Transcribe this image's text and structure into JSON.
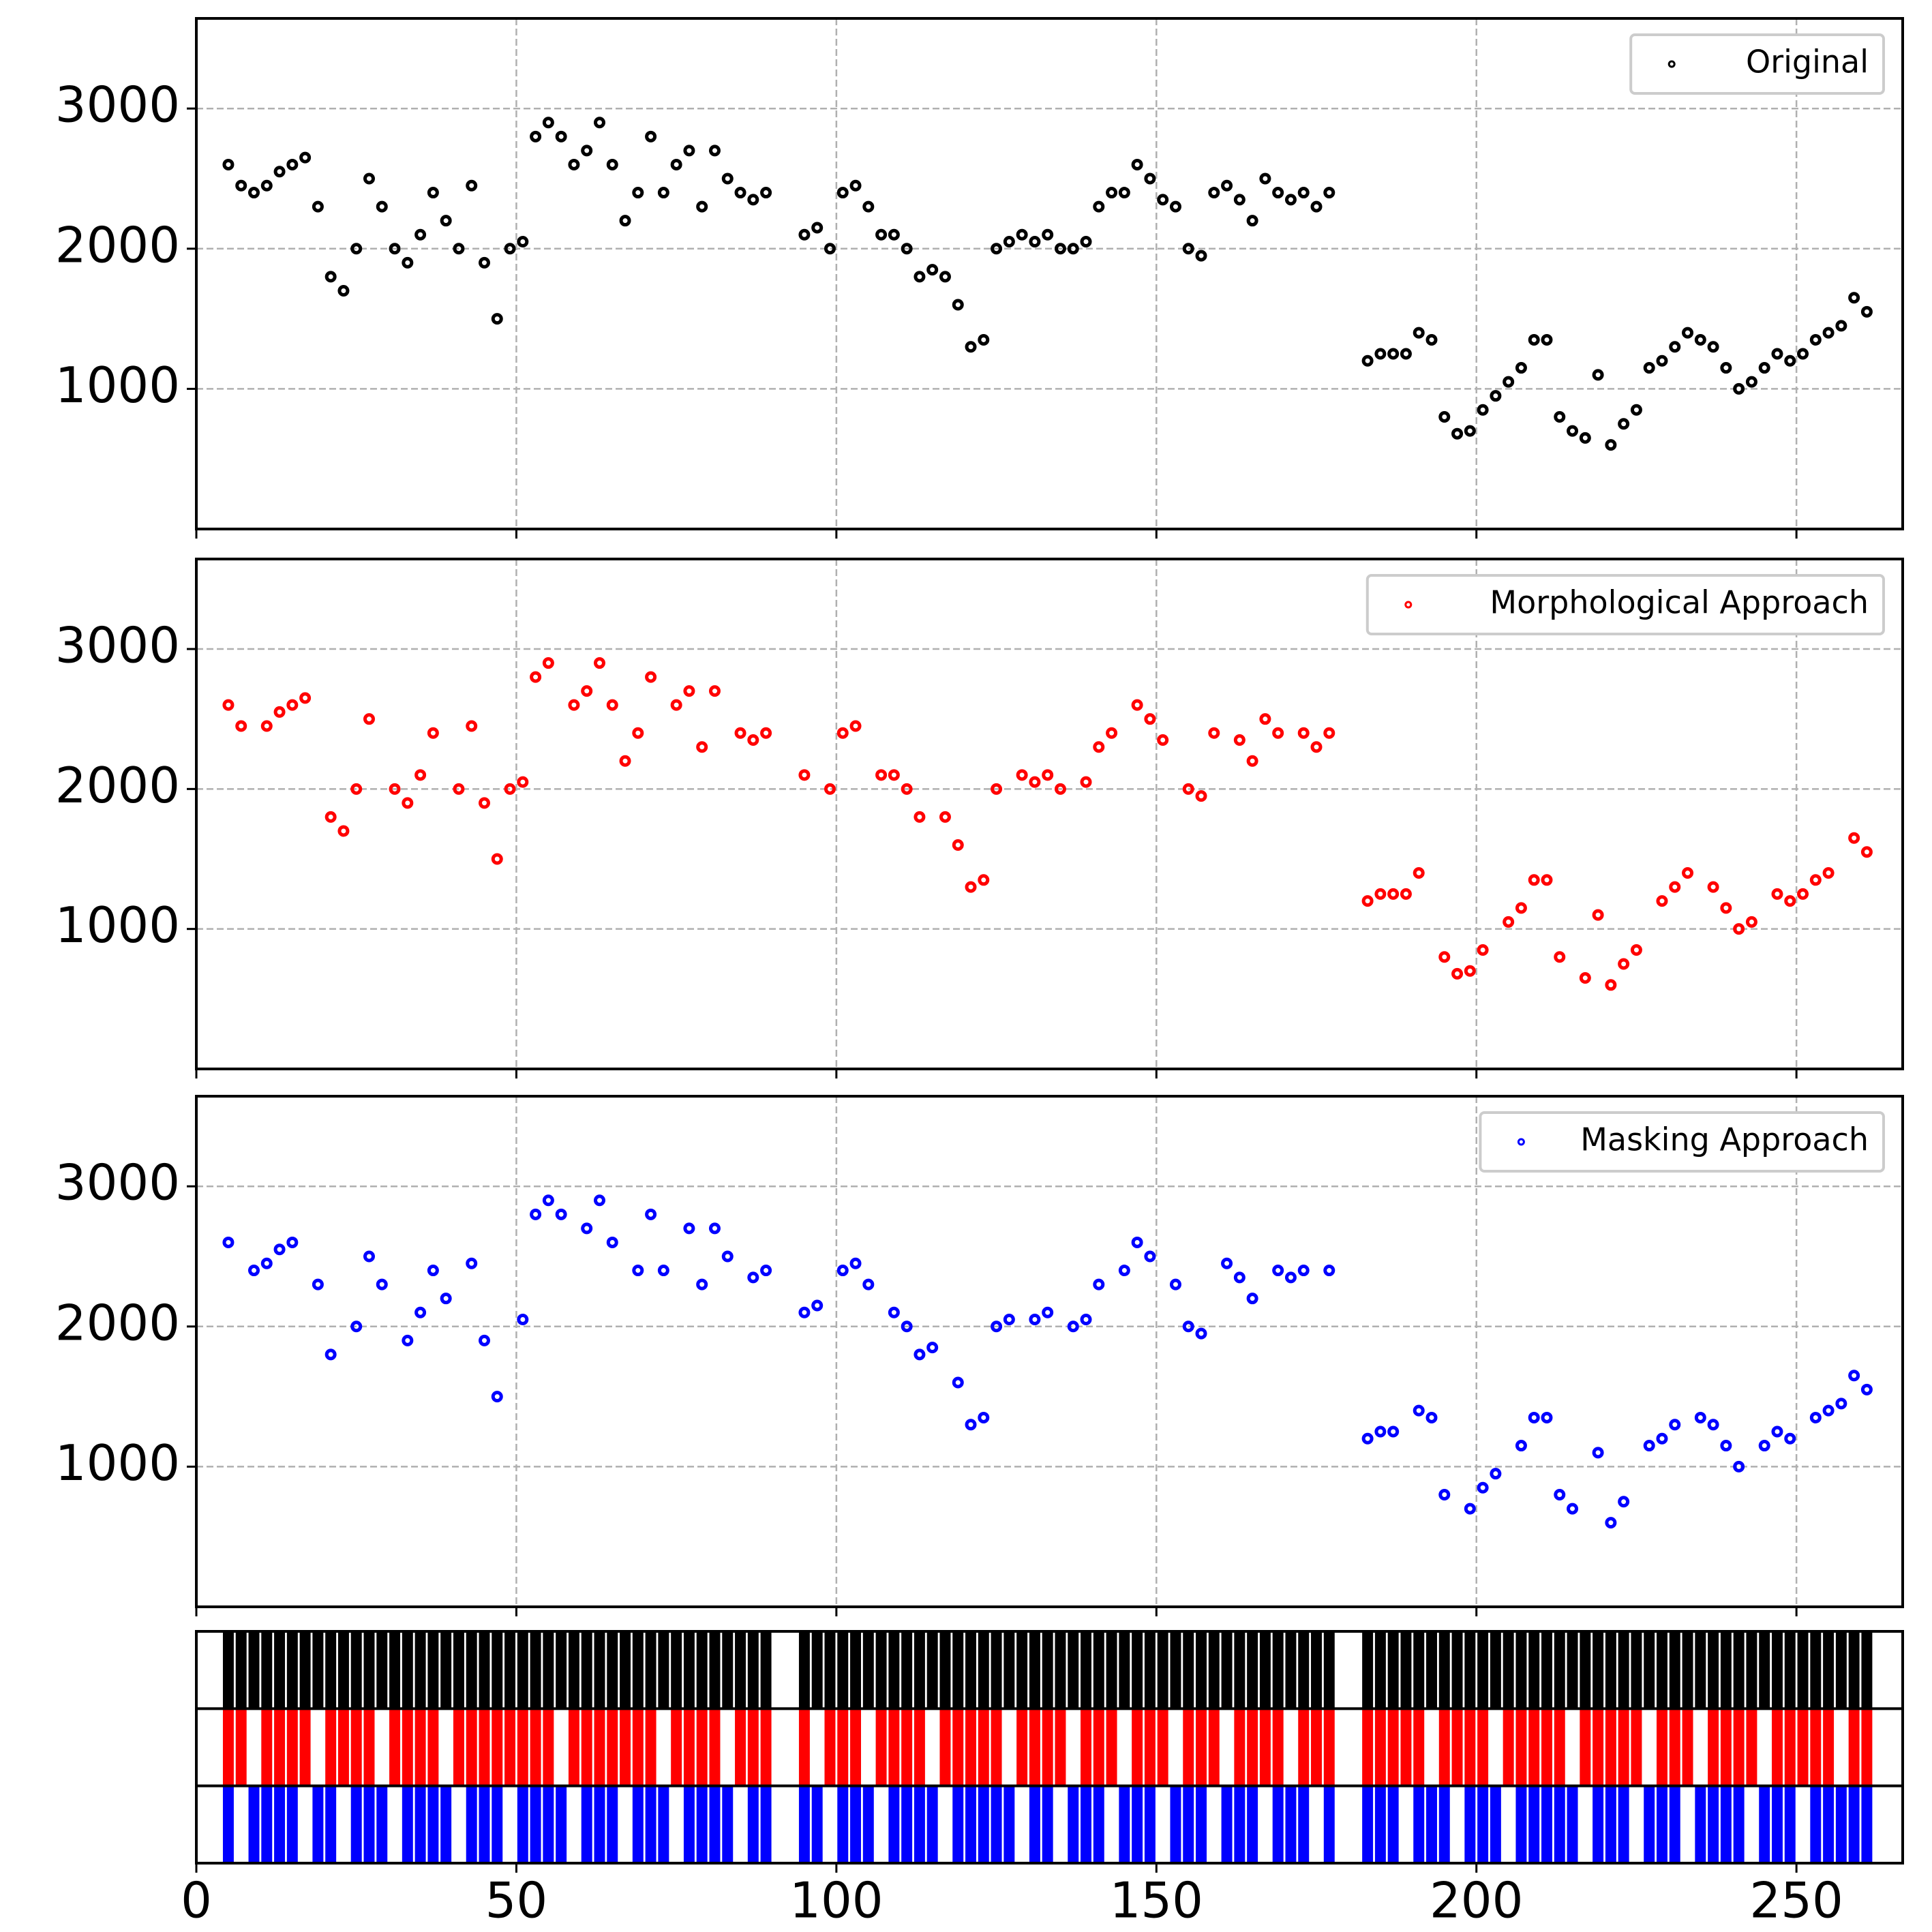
{
  "chart_data": {
    "type": "scatter",
    "x": [
      5,
      7,
      9,
      11,
      13,
      15,
      17,
      19,
      21,
      23,
      25,
      27,
      29,
      31,
      33,
      35,
      37,
      39,
      41,
      43,
      45,
      47,
      49,
      51,
      53,
      55,
      57,
      59,
      61,
      63,
      65,
      67,
      69,
      71,
      73,
      75,
      77,
      79,
      81,
      83,
      85,
      87,
      89,
      95,
      97,
      99,
      101,
      103,
      105,
      107,
      109,
      111,
      113,
      115,
      117,
      119,
      121,
      123,
      125,
      127,
      129,
      131,
      133,
      135,
      137,
      139,
      141,
      143,
      145,
      147,
      149,
      151,
      153,
      155,
      157,
      159,
      161,
      163,
      165,
      167,
      169,
      171,
      173,
      175,
      177,
      183,
      185,
      187,
      189,
      191,
      193,
      195,
      197,
      199,
      201,
      203,
      205,
      207,
      209,
      211,
      213,
      215,
      217,
      219,
      221,
      223,
      225,
      227,
      229,
      231,
      233,
      235,
      237,
      239,
      241,
      243,
      245,
      247,
      249,
      251,
      253,
      255,
      257,
      259,
      261
    ],
    "series": [
      {
        "name": "Original",
        "color": "#000000",
        "values": [
          2600,
          2450,
          2400,
          2450,
          2550,
          2600,
          2650,
          2300,
          1800,
          1700,
          2000,
          2500,
          2300,
          2000,
          1900,
          2100,
          2400,
          2200,
          2000,
          2450,
          1900,
          1500,
          2000,
          2050,
          2800,
          2900,
          2800,
          2600,
          2700,
          2900,
          2600,
          2200,
          2400,
          2800,
          2400,
          2600,
          2700,
          2300,
          2700,
          2500,
          2400,
          2350,
          2400,
          2100,
          2150,
          2000,
          2400,
          2450,
          2300,
          2100,
          2100,
          2000,
          1800,
          1850,
          1800,
          1600,
          1300,
          1350,
          2000,
          2050,
          2100,
          2050,
          2100,
          2000,
          2000,
          2050,
          2300,
          2400,
          2400,
          2600,
          2500,
          2350,
          2300,
          2000,
          1950,
          2400,
          2450,
          2350,
          2200,
          2500,
          2400,
          2350,
          2400,
          2300,
          2400,
          1200,
          1250,
          1250,
          1250,
          1400,
          1350,
          800,
          680,
          700,
          850,
          950,
          1050,
          1150,
          1350,
          1350,
          800,
          700,
          650,
          1100,
          600,
          750,
          850,
          1150,
          1200,
          1300,
          1400,
          1350,
          1300,
          1150,
          1000,
          1050,
          1150,
          1250,
          1200,
          1250,
          1350,
          1400,
          1450,
          1650,
          1550
        ]
      },
      {
        "name": "Morphological Approach",
        "color": "#ff0000",
        "values": [
          2600,
          2450,
          null,
          2450,
          2550,
          2600,
          2650,
          null,
          1800,
          1700,
          2000,
          2500,
          null,
          2000,
          1900,
          2100,
          2400,
          null,
          2000,
          2450,
          1900,
          1500,
          2000,
          2050,
          2800,
          2900,
          null,
          2600,
          2700,
          2900,
          2600,
          2200,
          2400,
          2800,
          null,
          2600,
          2700,
          2300,
          2700,
          null,
          2400,
          2350,
          2400,
          2100,
          null,
          2000,
          2400,
          2450,
          null,
          2100,
          2100,
          2000,
          1800,
          null,
          1800,
          1600,
          1300,
          1350,
          2000,
          null,
          2100,
          2050,
          2100,
          2000,
          null,
          2050,
          2300,
          2400,
          null,
          2600,
          2500,
          2350,
          null,
          2000,
          1950,
          2400,
          null,
          2350,
          2200,
          2500,
          2400,
          null,
          2400,
          2300,
          2400,
          1200,
          1250,
          1250,
          1250,
          1400,
          null,
          800,
          680,
          700,
          850,
          null,
          1050,
          1150,
          1350,
          1350,
          800,
          null,
          650,
          1100,
          600,
          750,
          850,
          null,
          1200,
          1300,
          1400,
          null,
          1300,
          1150,
          1000,
          1050,
          null,
          1250,
          1200,
          1250,
          1350,
          1400,
          null,
          1650,
          1550
        ]
      },
      {
        "name": "Masking Approach",
        "color": "#0000ff",
        "values": [
          2600,
          null,
          2400,
          2450,
          2550,
          2600,
          null,
          2300,
          1800,
          null,
          2000,
          2500,
          2300,
          null,
          1900,
          2100,
          2400,
          2200,
          null,
          2450,
          1900,
          1500,
          null,
          2050,
          2800,
          2900,
          2800,
          null,
          2700,
          2900,
          2600,
          null,
          2400,
          2800,
          2400,
          null,
          2700,
          2300,
          2700,
          2500,
          null,
          2350,
          2400,
          2100,
          2150,
          null,
          2400,
          2450,
          2300,
          null,
          2100,
          2000,
          1800,
          1850,
          null,
          1600,
          1300,
          1350,
          2000,
          2050,
          null,
          2050,
          2100,
          null,
          2000,
          2050,
          2300,
          null,
          2400,
          2600,
          2500,
          null,
          2300,
          2000,
          1950,
          null,
          2450,
          2350,
          2200,
          null,
          2400,
          2350,
          2400,
          null,
          2400,
          1200,
          1250,
          1250,
          null,
          1400,
          1350,
          800,
          null,
          700,
          850,
          950,
          null,
          1150,
          1350,
          1350,
          800,
          700,
          null,
          1100,
          600,
          750,
          null,
          1150,
          1200,
          1300,
          null,
          1350,
          1300,
          1150,
          1000,
          null,
          1150,
          1250,
          1200,
          null,
          1350,
          1400,
          1450,
          1650,
          1550
        ]
      }
    ],
    "xlim": [
      0,
      266.6
    ],
    "xticks": [
      0,
      50,
      100,
      150,
      200,
      250
    ],
    "ylim": [
      0,
      3643
    ],
    "yticks": [
      1000,
      2000,
      3000
    ],
    "grid": true,
    "legend": "upper right"
  }
}
